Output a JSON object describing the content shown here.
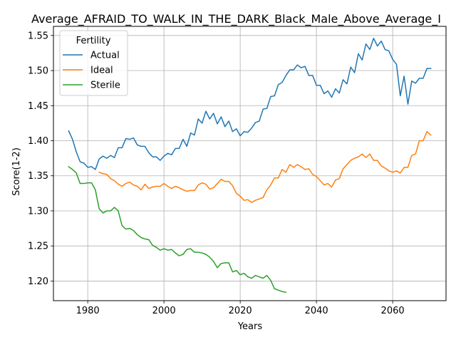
{
  "chart_data": {
    "type": "line",
    "title": "Average_AFRAID_TO_WALK_IN_THE_DARK_Black_Male_Above_Average_I",
    "xlabel": "Years",
    "ylabel": "Score(1-2)",
    "xlim": [
      1971,
      2074
    ],
    "ylim": [
      1.172,
      1.563
    ],
    "grid": true,
    "xticks": [
      1980,
      2000,
      2020,
      2040,
      2060
    ],
    "yticks": [
      1.2,
      1.25,
      1.3,
      1.35,
      1.4,
      1.45,
      1.5,
      1.55
    ],
    "xtick_labels": [
      "1980",
      "2000",
      "2020",
      "2040",
      "2060"
    ],
    "ytick_labels": [
      "1.20",
      "1.25",
      "1.30",
      "1.35",
      "1.40",
      "1.45",
      "1.50",
      "1.55"
    ],
    "legend": {
      "title": "Fertility",
      "placement": "top-left"
    },
    "series": [
      {
        "name": "Actual",
        "color": "#1f77b4",
        "x": [
          1975,
          1976,
          1977,
          1978,
          1979,
          1980,
          1981,
          1982,
          1983,
          1984,
          1985,
          1986,
          1987,
          1988,
          1989,
          1990,
          1991,
          1992,
          1993,
          1994,
          1995,
          1996,
          1997,
          1998,
          1999,
          2000,
          2001,
          2002,
          2003,
          2004,
          2005,
          2006,
          2007,
          2008,
          2009,
          2010,
          2011,
          2012,
          2013,
          2014,
          2015,
          2016,
          2017,
          2018,
          2019,
          2020,
          2021,
          2022,
          2023,
          2024,
          2025,
          2026,
          2027,
          2028,
          2029,
          2030,
          2031,
          2032,
          2033,
          2034,
          2035,
          2036,
          2037,
          2038,
          2039,
          2040,
          2041,
          2042,
          2043,
          2044,
          2045,
          2046,
          2047,
          2048,
          2049,
          2050,
          2051,
          2052,
          2053,
          2054,
          2055,
          2056,
          2057,
          2058,
          2059,
          2060,
          2061,
          2062,
          2063,
          2064,
          2065,
          2066,
          2067,
          2068,
          2069,
          2070
        ],
        "y": [
          1.414,
          1.402,
          1.384,
          1.37,
          1.368,
          1.362,
          1.363,
          1.359,
          1.374,
          1.378,
          1.375,
          1.379,
          1.376,
          1.39,
          1.39,
          1.403,
          1.402,
          1.404,
          1.394,
          1.392,
          1.392,
          1.383,
          1.377,
          1.377,
          1.372,
          1.378,
          1.382,
          1.38,
          1.389,
          1.389,
          1.402,
          1.392,
          1.411,
          1.408,
          1.431,
          1.425,
          1.442,
          1.431,
          1.439,
          1.424,
          1.434,
          1.42,
          1.428,
          1.413,
          1.417,
          1.407,
          1.413,
          1.412,
          1.418,
          1.426,
          1.428,
          1.445,
          1.446,
          1.463,
          1.464,
          1.48,
          1.483,
          1.493,
          1.501,
          1.501,
          1.508,
          1.504,
          1.506,
          1.493,
          1.493,
          1.479,
          1.479,
          1.467,
          1.471,
          1.462,
          1.474,
          1.468,
          1.487,
          1.481,
          1.505,
          1.497,
          1.524,
          1.515,
          1.538,
          1.53,
          1.546,
          1.535,
          1.542,
          1.53,
          1.528,
          1.516,
          1.509,
          1.464,
          1.492,
          1.452,
          1.485,
          1.482,
          1.489,
          1.489,
          1.503,
          1.503
        ]
      },
      {
        "name": "Ideal",
        "color": "#ff7f0e",
        "x": [
          1983,
          1984,
          1985,
          1986,
          1987,
          1988,
          1989,
          1990,
          1991,
          1992,
          1993,
          1994,
          1995,
          1996,
          1997,
          1998,
          1999,
          2000,
          2001,
          2002,
          2003,
          2004,
          2005,
          2006,
          2007,
          2008,
          2009,
          2010,
          2011,
          2012,
          2013,
          2014,
          2015,
          2016,
          2017,
          2018,
          2019,
          2020,
          2021,
          2022,
          2023,
          2024,
          2025,
          2026,
          2027,
          2028,
          2029,
          2030,
          2031,
          2032,
          2033,
          2034,
          2035,
          2036,
          2037,
          2038,
          2039,
          2040,
          2041,
          2042,
          2043,
          2044,
          2045,
          2046,
          2047,
          2048,
          2049,
          2050,
          2051,
          2052,
          2053,
          2054,
          2055,
          2056,
          2057,
          2058,
          2059,
          2060,
          2061,
          2062,
          2063,
          2064,
          2065,
          2066,
          2067,
          2068,
          2069,
          2070
        ],
        "y": [
          1.355,
          1.353,
          1.352,
          1.346,
          1.343,
          1.338,
          1.335,
          1.339,
          1.341,
          1.337,
          1.335,
          1.33,
          1.338,
          1.332,
          1.334,
          1.335,
          1.335,
          1.339,
          1.335,
          1.332,
          1.335,
          1.333,
          1.33,
          1.328,
          1.329,
          1.329,
          1.337,
          1.34,
          1.338,
          1.331,
          1.333,
          1.339,
          1.345,
          1.342,
          1.342,
          1.336,
          1.325,
          1.321,
          1.315,
          1.316,
          1.312,
          1.315,
          1.317,
          1.319,
          1.33,
          1.337,
          1.347,
          1.347,
          1.359,
          1.355,
          1.366,
          1.362,
          1.366,
          1.363,
          1.359,
          1.36,
          1.352,
          1.349,
          1.343,
          1.337,
          1.339,
          1.334,
          1.344,
          1.346,
          1.36,
          1.366,
          1.372,
          1.375,
          1.377,
          1.381,
          1.376,
          1.381,
          1.372,
          1.372,
          1.364,
          1.361,
          1.357,
          1.355,
          1.357,
          1.354,
          1.362,
          1.362,
          1.379,
          1.381,
          1.4,
          1.4,
          1.413,
          1.408
        ]
      },
      {
        "name": "Sterile",
        "color": "#2ca02c",
        "x": [
          1975,
          1976,
          1977,
          1978,
          1979,
          1980,
          1981,
          1982,
          1983,
          1984,
          1985,
          1986,
          1987,
          1988,
          1989,
          1990,
          1991,
          1992,
          1993,
          1994,
          1995,
          1996,
          1997,
          1998,
          1999,
          2000,
          2001,
          2002,
          2003,
          2004,
          2005,
          2006,
          2007,
          2008,
          2009,
          2010,
          2011,
          2012,
          2013,
          2014,
          2015,
          2016,
          2017,
          2018,
          2019,
          2020,
          2021,
          2022,
          2023,
          2024,
          2025,
          2026,
          2027,
          2028,
          2029,
          2030,
          2031,
          2032
        ],
        "y": [
          1.363,
          1.359,
          1.354,
          1.339,
          1.339,
          1.34,
          1.34,
          1.33,
          1.303,
          1.297,
          1.3,
          1.3,
          1.305,
          1.3,
          1.279,
          1.274,
          1.275,
          1.272,
          1.266,
          1.262,
          1.26,
          1.259,
          1.251,
          1.248,
          1.244,
          1.246,
          1.244,
          1.245,
          1.24,
          1.236,
          1.238,
          1.245,
          1.246,
          1.241,
          1.241,
          1.24,
          1.238,
          1.234,
          1.228,
          1.219,
          1.225,
          1.226,
          1.226,
          1.213,
          1.215,
          1.209,
          1.211,
          1.206,
          1.204,
          1.208,
          1.206,
          1.204,
          1.208,
          1.201,
          1.189,
          1.187,
          1.185,
          1.184
        ]
      }
    ]
  }
}
